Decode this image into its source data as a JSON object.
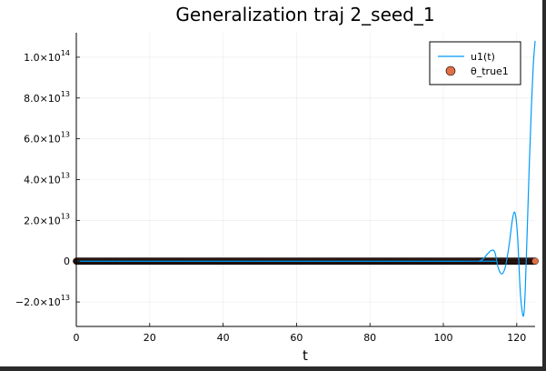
{
  "chart_data": {
    "type": "line",
    "title": "Generalization traj 2_seed_1",
    "xlabel": "t",
    "ylabel": "",
    "xlim": [
      0,
      125
    ],
    "ylim": [
      -32000000000000.0,
      112000000000000.0
    ],
    "x_ticks": [
      0,
      20,
      40,
      60,
      80,
      100,
      120
    ],
    "y_ticks": [
      {
        "value": -20000000000000.0,
        "mantissa": "−2.0×10",
        "exponent": "13"
      },
      {
        "value": 0,
        "mantissa": "0",
        "exponent": ""
      },
      {
        "value": 20000000000000.0,
        "mantissa": "2.0×10",
        "exponent": "13"
      },
      {
        "value": 40000000000000.0,
        "mantissa": "4.0×10",
        "exponent": "13"
      },
      {
        "value": 60000000000000.0,
        "mantissa": "6.0×10",
        "exponent": "13"
      },
      {
        "value": 80000000000000.0,
        "mantissa": "8.0×10",
        "exponent": "13"
      },
      {
        "value": 100000000000000.0,
        "mantissa": "1.0×10",
        "exponent": "14"
      }
    ],
    "grid": true,
    "legend_position": "top-right",
    "series": [
      {
        "name": "u1(t)",
        "kind": "line",
        "color": "#009AF9",
        "x": [
          0,
          105,
          110,
          112,
          113,
          114,
          115,
          116,
          117,
          118,
          118.7,
          119.3,
          119.8,
          120.3,
          121,
          121.8,
          122.3,
          122.8,
          123.4,
          124,
          124.5,
          125
        ],
        "y": [
          0,
          0,
          300000000000.0,
          3500000000000.0,
          5200000000000.0,
          4500000000000.0,
          -3500000000000.0,
          -6200000000000.0,
          -2000000000000.0,
          9000000000000.0,
          19000000000000.0,
          24000000000000.0,
          21000000000000.0,
          10000000000000.0,
          -16000000000000.0,
          -27000000000000.0,
          -15000000000000.0,
          12000000000000.0,
          46000000000000.0,
          76000000000000.0,
          96000000000000.0,
          108000000000000.0
        ]
      },
      {
        "name": "θ_true1",
        "kind": "scatter",
        "color": "#E26F46",
        "x_start": 0,
        "x_end": 125,
        "x_step": 0.1,
        "y": 0
      }
    ]
  }
}
